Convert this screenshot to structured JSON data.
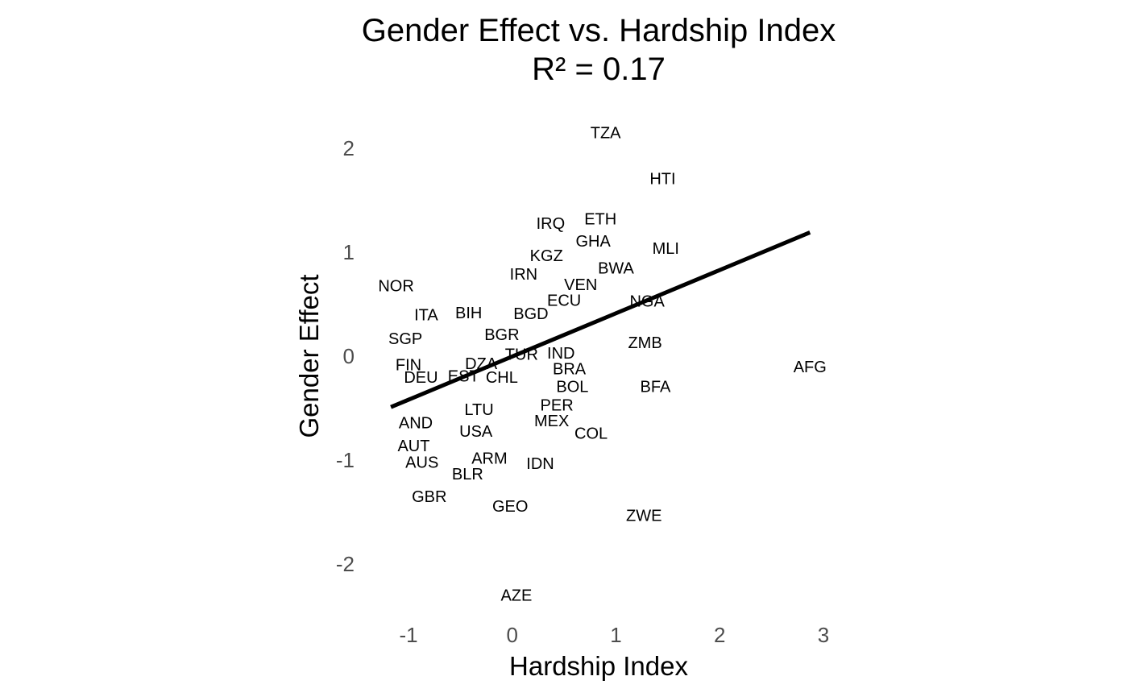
{
  "chart_data": {
    "type": "scatter",
    "title": "Gender Effect vs. Hardship Index",
    "subtitle": "R² = 0.17",
    "xlabel": "Hardship Index",
    "ylabel": "Gender Effect",
    "xlim": [
      -1.2,
      3.0
    ],
    "ylim": [
      -2.4,
      2.2
    ],
    "xticks": [
      -1,
      0,
      1,
      2,
      3
    ],
    "yticks": [
      -2,
      -1,
      0,
      1,
      2
    ],
    "xtick_labels": [
      "-1",
      "0",
      "1",
      "2",
      "3"
    ],
    "ytick_labels": [
      "-2",
      "-1",
      "0",
      "1",
      "2"
    ],
    "grid": false,
    "legend": "none",
    "fit_line": {
      "x": [
        -1.17,
        2.87
      ],
      "y": [
        -0.49,
        1.19
      ],
      "color": "#000000"
    },
    "points": [
      {
        "label": "TZA",
        "x": 0.9,
        "y": 2.15
      },
      {
        "label": "HTI",
        "x": 1.45,
        "y": 1.71
      },
      {
        "label": "IRQ",
        "x": 0.37,
        "y": 1.28
      },
      {
        "label": "ETH",
        "x": 0.85,
        "y": 1.32
      },
      {
        "label": "GHA",
        "x": 0.78,
        "y": 1.11
      },
      {
        "label": "MLI",
        "x": 1.48,
        "y": 1.04
      },
      {
        "label": "KGZ",
        "x": 0.33,
        "y": 0.97
      },
      {
        "label": "BWA",
        "x": 1.0,
        "y": 0.85
      },
      {
        "label": "IRN",
        "x": 0.11,
        "y": 0.79
      },
      {
        "label": "VEN",
        "x": 0.66,
        "y": 0.69
      },
      {
        "label": "NOR",
        "x": -1.12,
        "y": 0.68
      },
      {
        "label": "ECU",
        "x": 0.5,
        "y": 0.54
      },
      {
        "label": "NGA",
        "x": 1.3,
        "y": 0.53
      },
      {
        "label": "ITA",
        "x": -0.83,
        "y": 0.4
      },
      {
        "label": "BIH",
        "x": -0.42,
        "y": 0.42
      },
      {
        "label": "BGD",
        "x": 0.18,
        "y": 0.41
      },
      {
        "label": "SGP",
        "x": -1.03,
        "y": 0.17
      },
      {
        "label": "BGR",
        "x": -0.1,
        "y": 0.21
      },
      {
        "label": "ZMB",
        "x": 1.28,
        "y": 0.13
      },
      {
        "label": "TUR",
        "x": 0.09,
        "y": 0.02
      },
      {
        "label": "IND",
        "x": 0.47,
        "y": 0.03
      },
      {
        "label": "FIN",
        "x": -1.0,
        "y": -0.08
      },
      {
        "label": "DZA",
        "x": -0.3,
        "y": -0.07
      },
      {
        "label": "AFG",
        "x": 2.87,
        "y": -0.1
      },
      {
        "label": "BRA",
        "x": 0.55,
        "y": -0.12
      },
      {
        "label": "DEU",
        "x": -0.88,
        "y": -0.2
      },
      {
        "label": "EST",
        "x": -0.47,
        "y": -0.19
      },
      {
        "label": "CHL",
        "x": -0.1,
        "y": -0.2
      },
      {
        "label": "BOL",
        "x": 0.58,
        "y": -0.29
      },
      {
        "label": "BFA",
        "x": 1.38,
        "y": -0.29
      },
      {
        "label": "LTU",
        "x": -0.32,
        "y": -0.51
      },
      {
        "label": "PER",
        "x": 0.43,
        "y": -0.47
      },
      {
        "label": "AND",
        "x": -0.93,
        "y": -0.64
      },
      {
        "label": "MEX",
        "x": 0.38,
        "y": -0.62
      },
      {
        "label": "USA",
        "x": -0.35,
        "y": -0.72
      },
      {
        "label": "COL",
        "x": 0.76,
        "y": -0.74
      },
      {
        "label": "AUT",
        "x": -0.95,
        "y": -0.86
      },
      {
        "label": "ARM",
        "x": -0.22,
        "y": -0.98
      },
      {
        "label": "AUS",
        "x": -0.87,
        "y": -1.02
      },
      {
        "label": "IDN",
        "x": 0.27,
        "y": -1.03
      },
      {
        "label": "BLR",
        "x": -0.43,
        "y": -1.13
      },
      {
        "label": "GBR",
        "x": -0.8,
        "y": -1.35
      },
      {
        "label": "GEO",
        "x": -0.02,
        "y": -1.44
      },
      {
        "label": "ZWE",
        "x": 1.27,
        "y": -1.53
      },
      {
        "label": "AZE",
        "x": 0.04,
        "y": -2.3
      }
    ]
  }
}
